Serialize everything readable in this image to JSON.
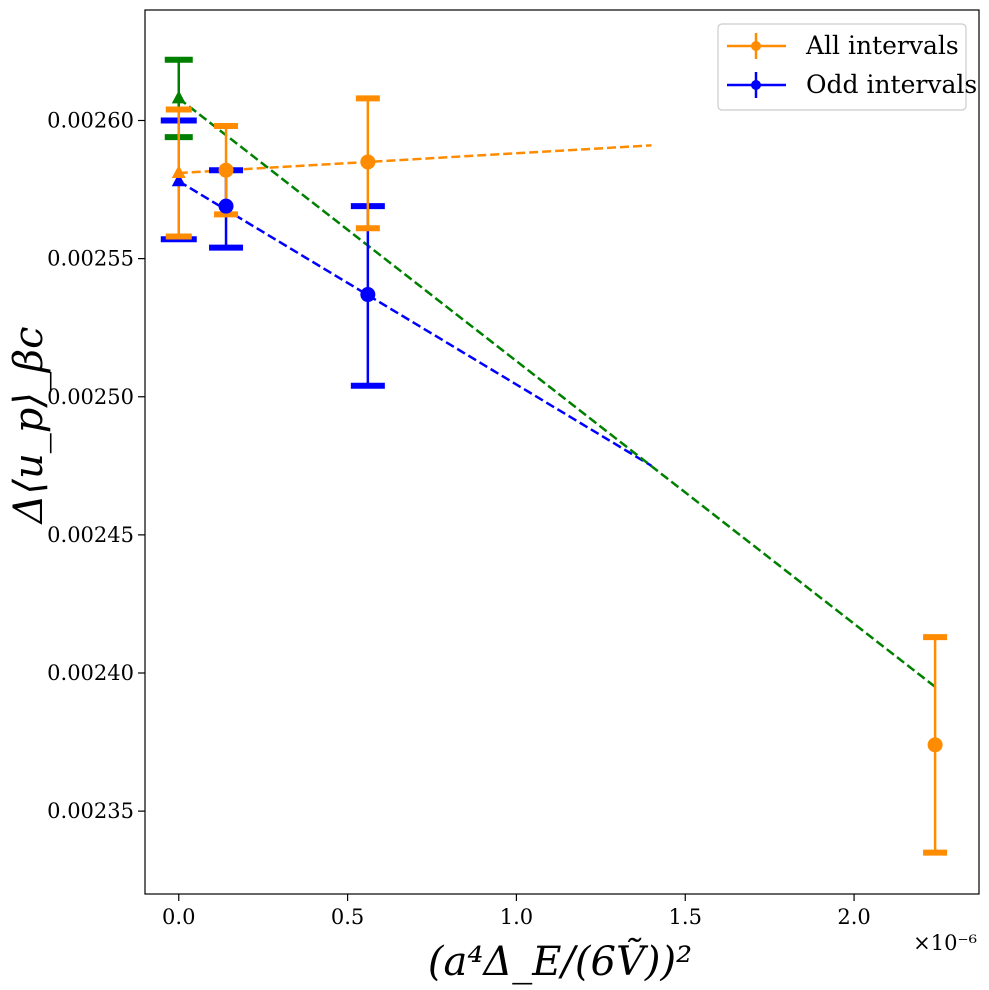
{
  "chart_data": {
    "type": "scatter",
    "title": "",
    "xlabel": "(a⁴Δ_E/(6Ṽ))²",
    "ylabel": "Δ⟨u_p⟩_βc",
    "x_scale_label": "×10⁻⁶",
    "xlim": [
      -0.1,
      2.37
    ],
    "ylim": [
      0.00232,
      0.00264
    ],
    "grid": false,
    "legend_position": "top-right",
    "x_ticks": [
      0.0,
      0.5,
      1.0,
      1.5,
      2.0
    ],
    "x_tick_labels": [
      "0.0",
      "0.5",
      "1.0",
      "1.5",
      "2.0"
    ],
    "y_ticks": [
      0.00235,
      0.0024,
      0.00245,
      0.0025,
      0.00255,
      0.0026
    ],
    "y_tick_labels": [
      "0.00235",
      "0.00240",
      "0.00245",
      "0.00250",
      "0.00255",
      "0.00260"
    ],
    "series": [
      {
        "name": "All intervals",
        "color": "#ff8c00",
        "marker": "circle",
        "points": [
          {
            "x": 0.14,
            "y": 0.002582,
            "err_low": 0.002566,
            "err_high": 0.002598
          },
          {
            "x": 0.56,
            "y": 0.002585,
            "err_low": 0.002561,
            "err_high": 0.002608
          },
          {
            "x": 2.24,
            "y": 0.002374,
            "err_low": 0.002335,
            "err_high": 0.002413
          }
        ],
        "extrapolated": {
          "x": 0.0,
          "y": 0.002581,
          "err_low": 0.002558,
          "err_high": 0.002604
        },
        "fit_line": {
          "x": [
            0.0,
            1.4
          ],
          "y": [
            0.002581,
            0.002591
          ]
        }
      },
      {
        "name": "Odd intervals",
        "color": "#0000ff",
        "marker": "circle",
        "points": [
          {
            "x": 0.14,
            "y": 0.002569,
            "err_low": 0.002554,
            "err_high": 0.002582
          },
          {
            "x": 0.56,
            "y": 0.002537,
            "err_low": 0.002504,
            "err_high": 0.002569
          }
        ],
        "extrapolated": {
          "x": 0.0,
          "y": 0.002578,
          "err_low": 0.002557,
          "err_high": 0.0026
        },
        "fit_line": {
          "x": [
            0.0,
            1.4
          ],
          "y": [
            0.002578,
            0.002475
          ]
        }
      },
      {
        "name": "",
        "color": "#008000",
        "marker": "triangle",
        "points": [],
        "extrapolated": {
          "x": 0.0,
          "y": 0.002608,
          "err_low": 0.002594,
          "err_high": 0.002622
        },
        "fit_line": {
          "x": [
            0.0,
            2.24
          ],
          "y": [
            0.002608,
            0.002395
          ]
        }
      }
    ],
    "legend": [
      {
        "label": "All intervals",
        "color": "#ff8c00"
      },
      {
        "label": "Odd intervals",
        "color": "#0000ff"
      }
    ]
  }
}
